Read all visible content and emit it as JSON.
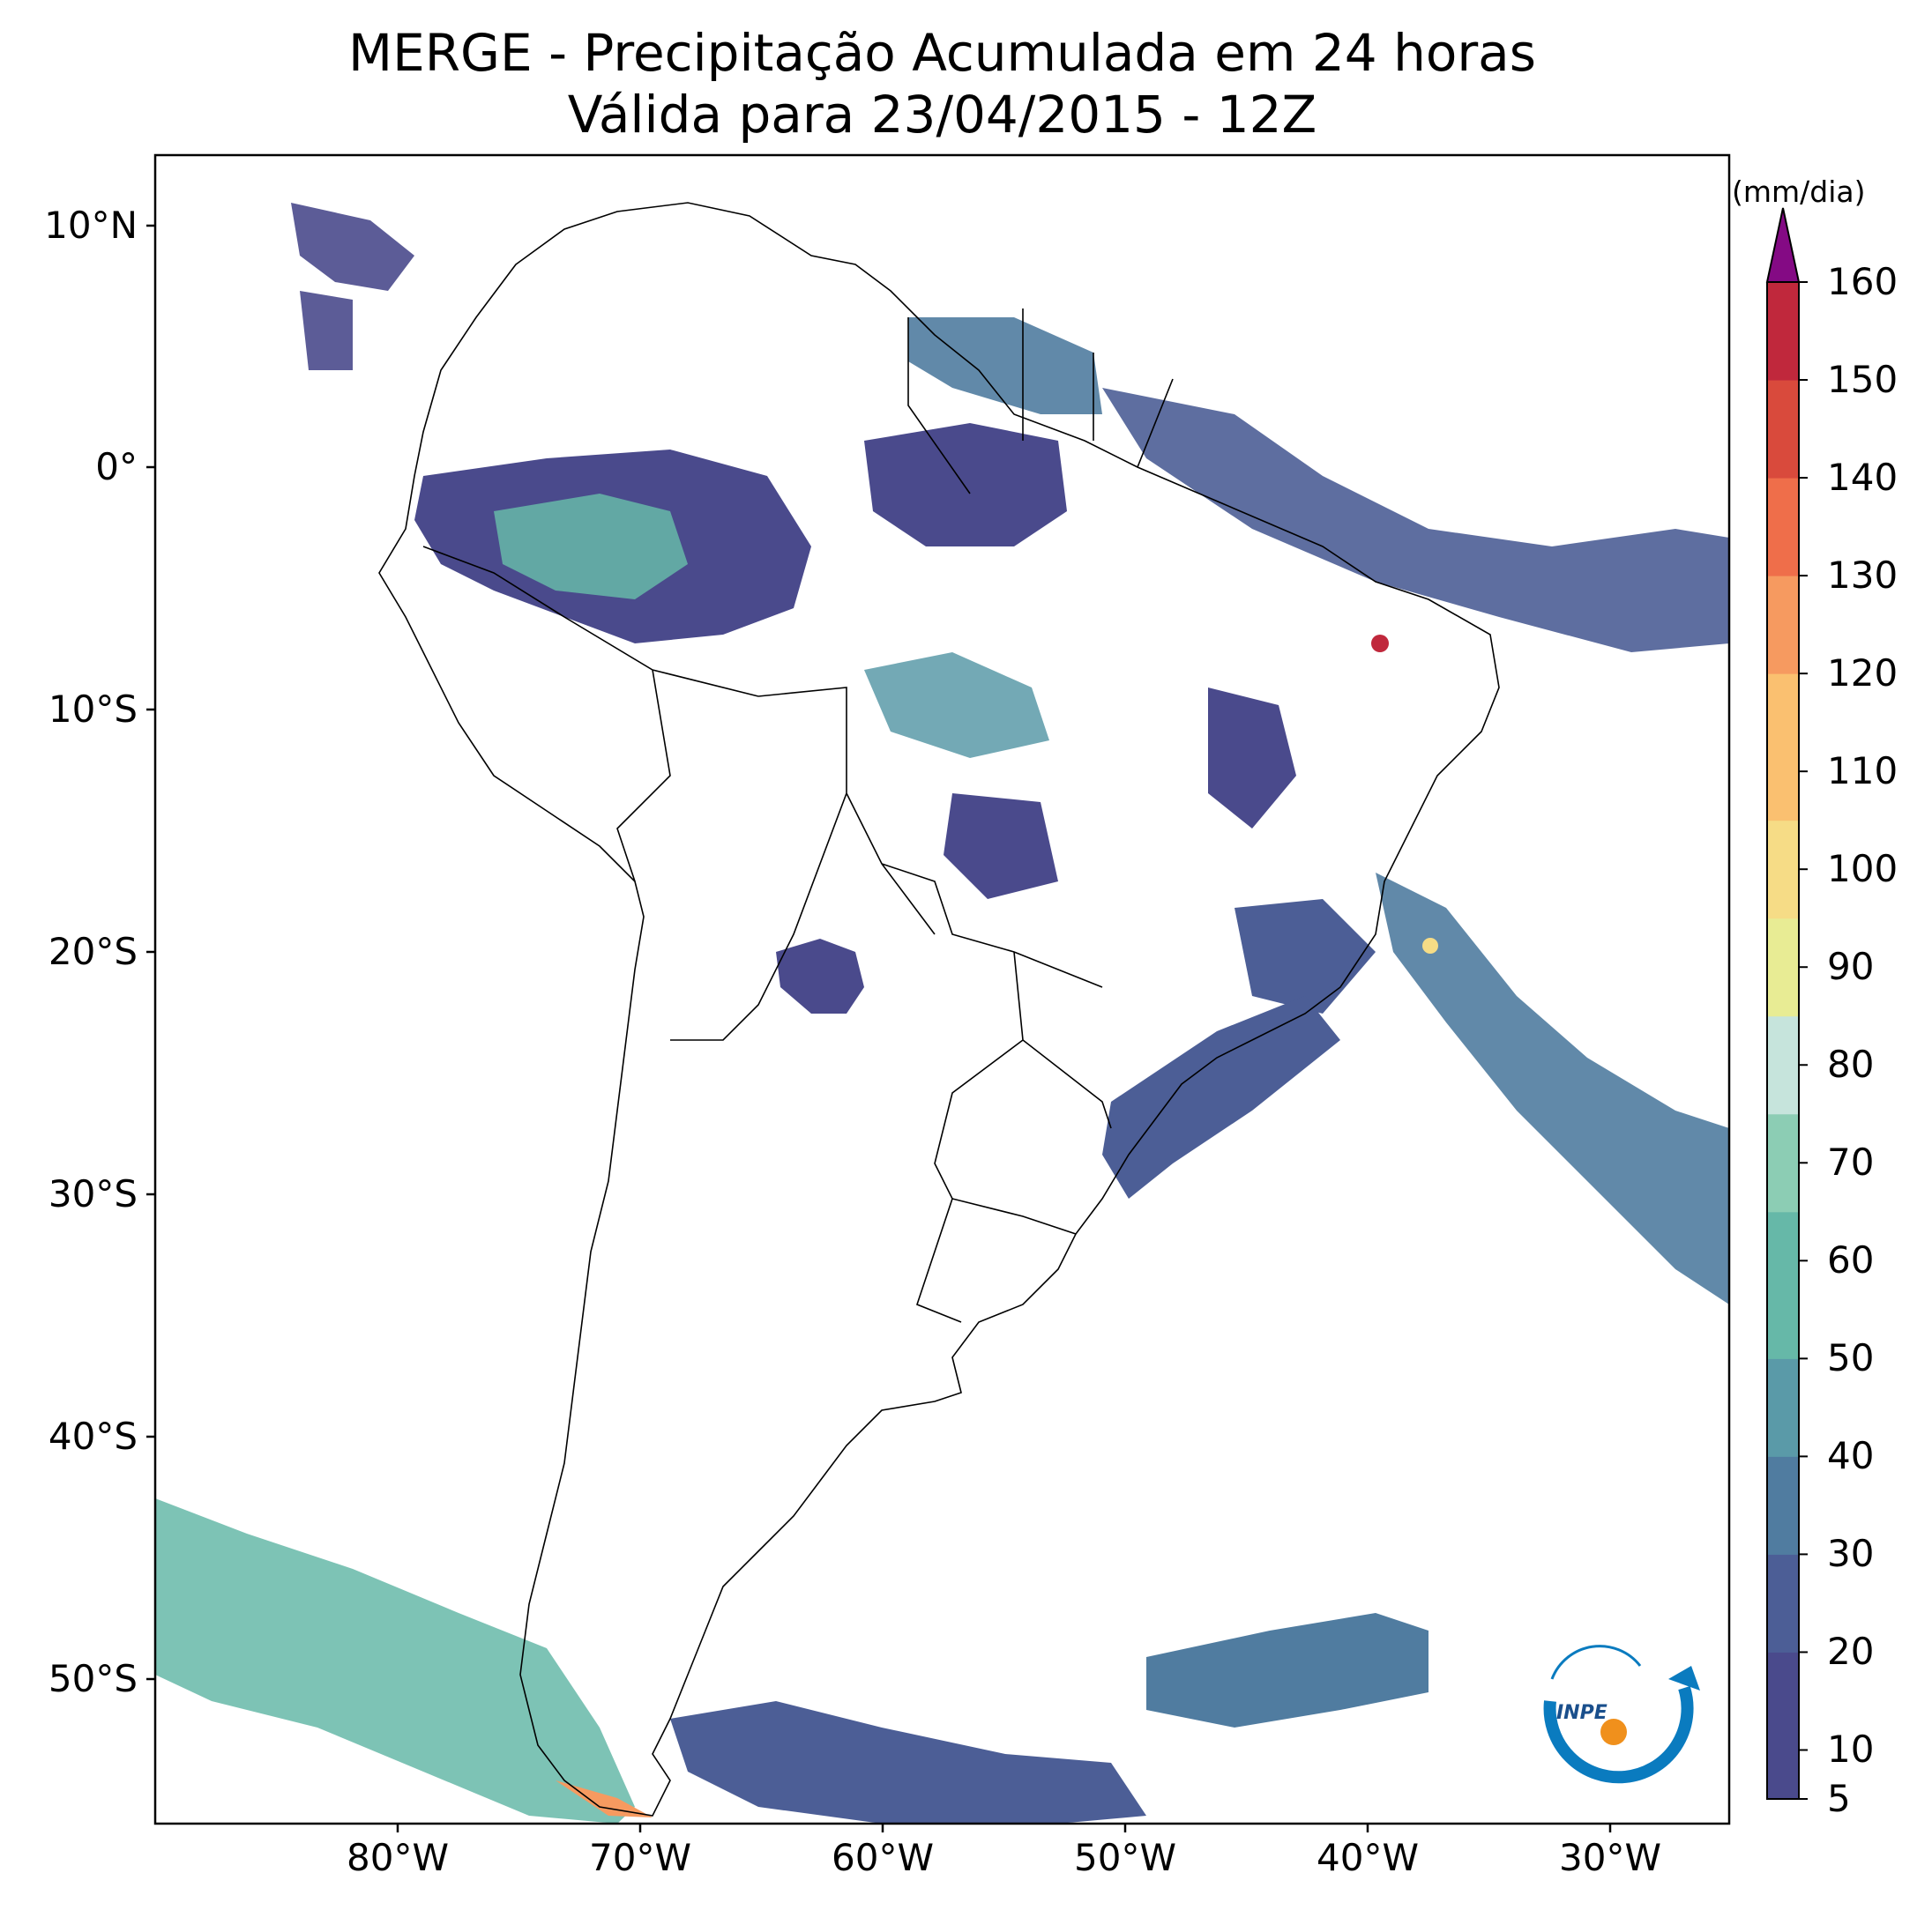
{
  "title": {
    "line1": "MERGE - Precipitação Acumulada em 24 horas",
    "line2": "Válida para 23/04/2015 - 12Z"
  },
  "map": {
    "lon_range": [
      -90,
      -25
    ],
    "lat_range": [
      -56,
      13
    ],
    "lat_ticks": [
      "10°N",
      "0°",
      "10°S",
      "20°S",
      "30°S",
      "40°S",
      "50°S"
    ],
    "lon_ticks": [
      "80°W",
      "70°W",
      "60°W",
      "50°W",
      "40°W",
      "30°W"
    ]
  },
  "colorbar": {
    "units": "(mm/dia)",
    "labels": [
      "5",
      "10",
      "20",
      "30",
      "40",
      "50",
      "60",
      "70",
      "80",
      "90",
      "100",
      "110",
      "120",
      "130",
      "140",
      "150",
      "160"
    ],
    "extend": "max",
    "colors": [
      "#4a4a8c",
      "#4c5e96",
      "#507ca0",
      "#5a9aa8",
      "#66b8a8",
      "#8ccdb4",
      "#c6e4dc",
      "#e8ec94",
      "#f6dc86",
      "#fac070",
      "#f69a60",
      "#ef6e4a",
      "#d94a3c",
      "#c0283c",
      "#840a84"
    ]
  },
  "logo": {
    "text": "INPE"
  }
}
